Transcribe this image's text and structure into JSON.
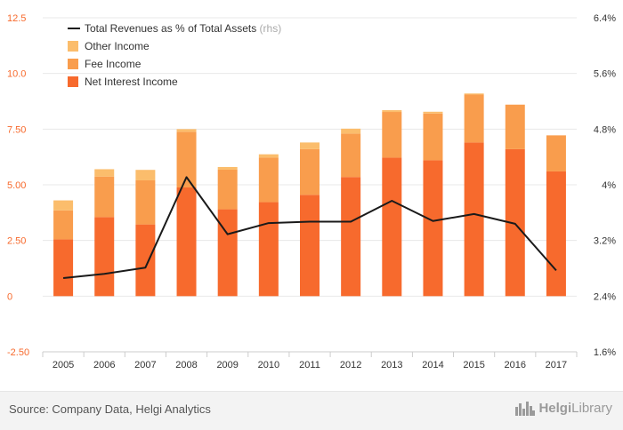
{
  "chart_data": {
    "type": "bar",
    "stacked": true,
    "categories": [
      "2005",
      "2006",
      "2007",
      "2008",
      "2009",
      "2010",
      "2011",
      "2012",
      "2013",
      "2014",
      "2015",
      "2016",
      "2017"
    ],
    "series": [
      {
        "name": "Net Interest Income",
        "axis": "left",
        "color": "#f76a2d",
        "values": [
          2.55,
          3.55,
          3.22,
          4.88,
          3.9,
          4.22,
          4.55,
          5.35,
          6.22,
          6.1,
          6.9,
          6.6,
          5.6
        ]
      },
      {
        "name": "Fee Income",
        "axis": "left",
        "color": "#f99d4d",
        "values": [
          1.3,
          1.82,
          1.98,
          2.5,
          1.78,
          2.0,
          2.05,
          1.95,
          2.05,
          2.1,
          2.15,
          2.0,
          1.62
        ]
      },
      {
        "name": "Other Income",
        "axis": "left",
        "color": "#fbbd6c",
        "values": [
          0.45,
          0.33,
          0.47,
          0.12,
          0.12,
          0.15,
          0.3,
          0.22,
          0.08,
          0.08,
          0.05,
          0.0,
          0.0
        ]
      },
      {
        "name": "Total Revenues as % of Total Assets",
        "suffix": "(rhs)",
        "axis": "right",
        "type": "line",
        "color": "#1a1a1a",
        "values": [
          2.66,
          2.72,
          2.81,
          4.11,
          3.29,
          3.45,
          3.47,
          3.47,
          3.77,
          3.48,
          3.58,
          3.44,
          2.77
        ]
      }
    ],
    "y_left": {
      "min": -2.5,
      "max": 12.5,
      "ticks": [
        "-2.50",
        "0",
        "2.50",
        "5.00",
        "7.50",
        "10.0",
        "12.5"
      ],
      "tick_values": [
        -2.5,
        0,
        2.5,
        5,
        7.5,
        10,
        12.5
      ]
    },
    "y_right": {
      "min": 1.6,
      "max": 6.4,
      "ticks": [
        "1.6%",
        "2.4%",
        "3.2%",
        "4%",
        "4.8%",
        "5.6%",
        "6.4%"
      ],
      "tick_values": [
        1.6,
        2.4,
        3.2,
        4.0,
        4.8,
        5.6,
        6.4
      ]
    },
    "legend_order": [
      "Total Revenues as % of Total Assets",
      "Other Income",
      "Fee Income",
      "Net Interest Income"
    ],
    "legend_position": "top-left",
    "grid": "horizontal",
    "colors": {
      "axis_left_text": "#f76a2d",
      "axis_right_text": "#333333",
      "grid": "#e8e8e8"
    }
  },
  "footer": {
    "source": "Source: Company Data, Helgi Analytics",
    "logo_part1": "Helgi",
    "logo_part2": "Library"
  }
}
